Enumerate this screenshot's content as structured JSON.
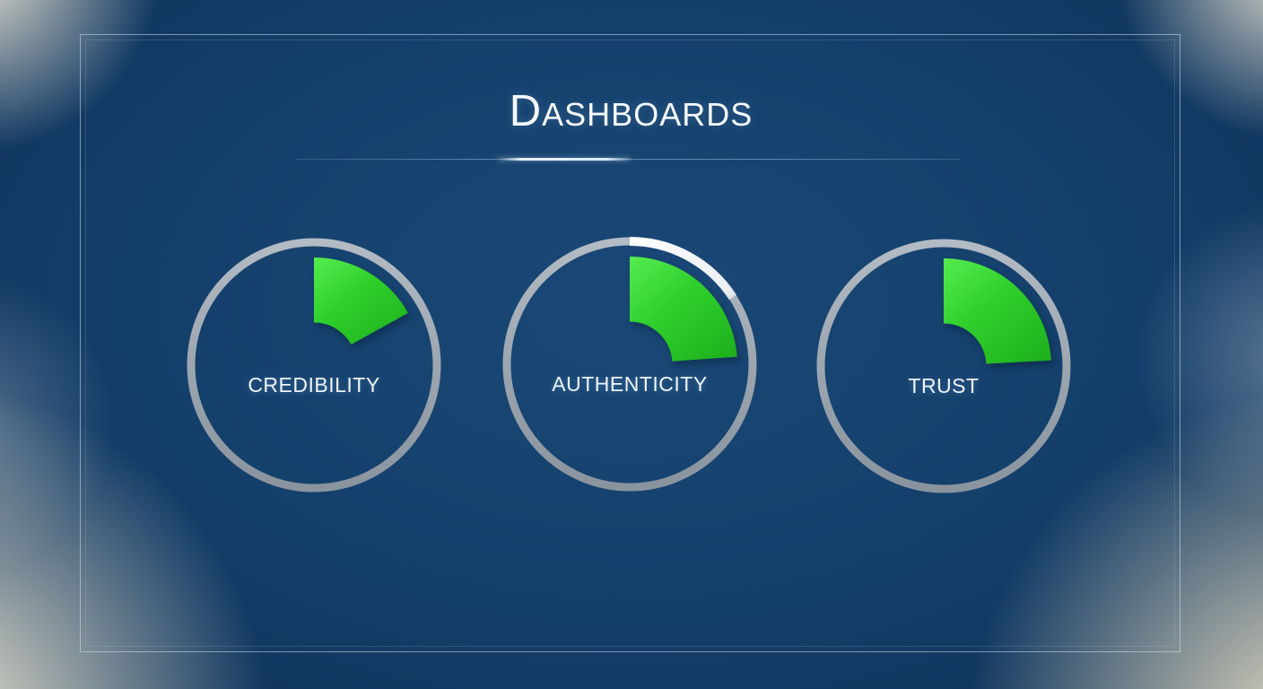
{
  "slide": {
    "title_cap": "D",
    "title_rest": "ASHBOARDS",
    "title_full": "Dashboards"
  },
  "chart_data": {
    "type": "pie",
    "subtype": "gauge-dials",
    "title": "Dashboards",
    "legend_position": "none",
    "grid": false,
    "gauges": [
      {
        "label": "CREDIBILITY",
        "value_percent": 17,
        "start_deg": 0,
        "end_deg": 61
      },
      {
        "label": "AUTHENTICITY",
        "value_percent": 24,
        "start_deg": 0,
        "end_deg": 86,
        "ring_highlight_deg": 57
      },
      {
        "label": "TRUST",
        "value_percent": 24,
        "start_deg": 0,
        "end_deg": 87
      }
    ],
    "colors": {
      "wedge_green": "#2fd32f",
      "ring_gray": "#9aa4ae",
      "ring_highlight_white": "#f2f6f9",
      "background_navy": "#123e6a",
      "corner_glow_cream": "#f3ecd7",
      "text_white": "#f2f6fa"
    }
  }
}
